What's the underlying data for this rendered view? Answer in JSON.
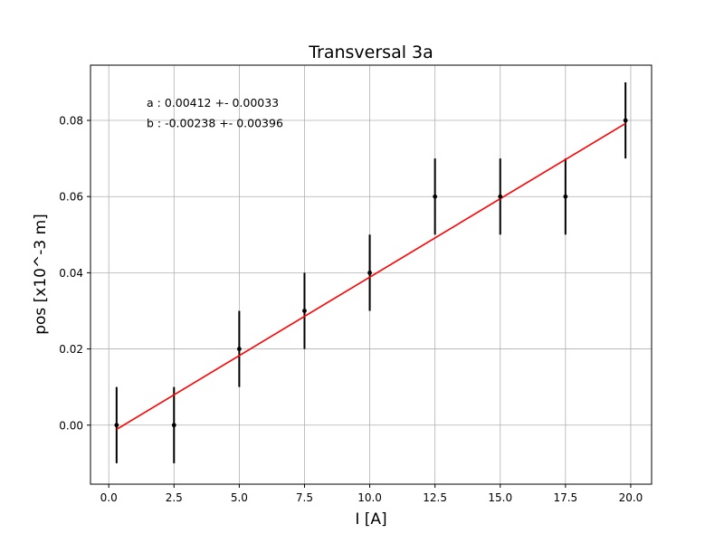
{
  "chart_data": {
    "type": "scatter",
    "title": "Transversal 3a",
    "xlabel": "I [A]",
    "ylabel": "pos [x10^-3 m]",
    "xlim": [
      -0.7,
      20.8
    ],
    "ylim": [
      -0.0155,
      0.0945
    ],
    "grid": true,
    "xticks": [
      0.0,
      2.5,
      5.0,
      7.5,
      10.0,
      12.5,
      15.0,
      17.5,
      20.0
    ],
    "xtick_labels": [
      "0.0",
      "2.5",
      "5.0",
      "7.5",
      "10.0",
      "12.5",
      "15.0",
      "17.5",
      "20.0"
    ],
    "yticks": [
      0.0,
      0.02,
      0.04,
      0.06,
      0.08
    ],
    "ytick_labels": [
      "0.00",
      "0.02",
      "0.04",
      "0.06",
      "0.08"
    ],
    "series": [
      {
        "kind": "errorbar",
        "color": "#000000",
        "x": [
          0.3,
          2.5,
          5.0,
          7.5,
          10.0,
          12.5,
          15.0,
          17.5,
          19.8
        ],
        "y": [
          0.0,
          0.0,
          0.02,
          0.03,
          0.04,
          0.06,
          0.06,
          0.06,
          0.08
        ],
        "yerr": [
          0.01,
          0.01,
          0.01,
          0.01,
          0.01,
          0.01,
          0.01,
          0.01,
          0.01
        ]
      },
      {
        "kind": "fit-line",
        "color": "#ff0000",
        "x": [
          0.3,
          19.8
        ],
        "y": [
          -0.0011,
          0.0792
        ]
      }
    ],
    "annotations": [
      "a : 0.00412 +- 0.00033",
      "b : -0.00238 +- 0.00396"
    ]
  }
}
